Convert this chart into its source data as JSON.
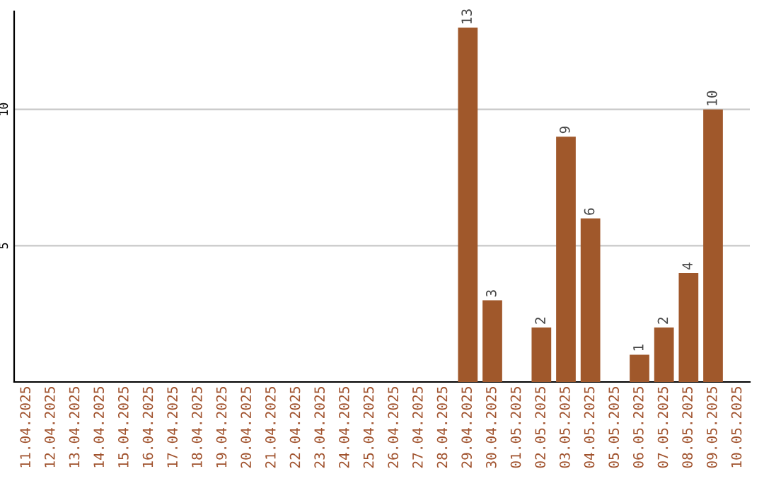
{
  "chart_data": {
    "type": "bar",
    "categories": [
      "11.04.2025",
      "12.04.2025",
      "13.04.2025",
      "14.04.2025",
      "15.04.2025",
      "16.04.2025",
      "17.04.2025",
      "18.04.2025",
      "19.04.2025",
      "20.04.2025",
      "21.04.2025",
      "22.04.2025",
      "23.04.2025",
      "24.04.2025",
      "25.04.2025",
      "26.04.2025",
      "27.04.2025",
      "28.04.2025",
      "29.04.2025",
      "30.04.2025",
      "01.05.2025",
      "02.05.2025",
      "03.05.2025",
      "04.05.2025",
      "05.05.2025",
      "06.05.2025",
      "07.05.2025",
      "08.05.2025",
      "09.05.2025",
      "10.05.2025"
    ],
    "values": [
      0,
      0,
      0,
      0,
      0,
      0,
      0,
      0,
      0,
      0,
      0,
      0,
      0,
      0,
      0,
      0,
      0,
      0,
      13,
      3,
      0,
      2,
      9,
      6,
      0,
      1,
      2,
      4,
      10,
      0
    ],
    "value_labels": [
      null,
      null,
      null,
      null,
      null,
      null,
      null,
      null,
      null,
      null,
      null,
      null,
      null,
      null,
      null,
      null,
      null,
      null,
      "13",
      "3",
      null,
      "2",
      "9",
      "6",
      null,
      "1",
      "2",
      "4",
      "10",
      null
    ],
    "color": "#a0582b",
    "ylim": [
      0,
      13.6
    ],
    "yticks": [
      5,
      10
    ],
    "grid": "y",
    "legend": false
  }
}
